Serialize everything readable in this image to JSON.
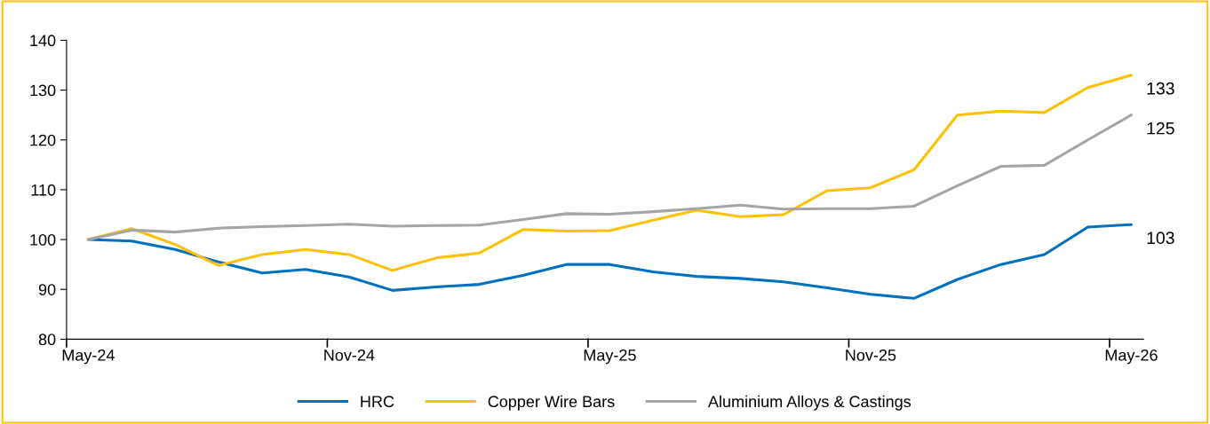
{
  "chart_data": {
    "type": "line",
    "categories": [
      "May-24",
      null,
      null,
      null,
      null,
      null,
      "Nov-24",
      null,
      null,
      null,
      null,
      null,
      "May-25",
      null,
      null,
      null,
      null,
      null,
      "Nov-25",
      null,
      null,
      null,
      null,
      null,
      "May-26"
    ],
    "series": [
      {
        "name": "HRC",
        "color": "#0070c0",
        "values": [
          100,
          99.7,
          98,
          95.5,
          93.3,
          94,
          92.5,
          89.8,
          90.5,
          91,
          92.8,
          95,
          95,
          93.5,
          92.6,
          92.2,
          91.5,
          90.3,
          89,
          88.2,
          92,
          95,
          97,
          102.5,
          103
        ],
        "value_labels": [
          null,
          null,
          null,
          null,
          null,
          null,
          null,
          null,
          null,
          null,
          null,
          null,
          null,
          null,
          null,
          null,
          null,
          null,
          null,
          null,
          null,
          null,
          null,
          null,
          "103"
        ]
      },
      {
        "name": "Copper Wire Bars",
        "color": "#ffc000",
        "values": [
          100,
          102.2,
          99,
          94.8,
          97,
          98,
          97,
          93.8,
          96.3,
          97.3,
          102,
          101.7,
          101.8,
          103.9,
          105.9,
          104.6,
          105,
          109.8,
          110.4,
          114,
          125,
          125.8,
          125.5,
          130.5,
          133
        ],
        "value_labels": [
          null,
          null,
          null,
          null,
          null,
          null,
          null,
          null,
          null,
          null,
          null,
          null,
          null,
          null,
          null,
          null,
          null,
          null,
          null,
          null,
          null,
          null,
          null,
          null,
          "133"
        ]
      },
      {
        "name": "Aluminium Alloys & Castings",
        "color": "#a5a5a5",
        "values": [
          100,
          101.9,
          101.5,
          102.3,
          102.6,
          102.8,
          103.1,
          102.7,
          102.8,
          102.9,
          104,
          105.2,
          105.1,
          105.6,
          106.2,
          106.9,
          106.1,
          106.2,
          106.2,
          106.7,
          110.8,
          114.7,
          114.9,
          120,
          125
        ],
        "value_labels": [
          null,
          null,
          null,
          null,
          null,
          null,
          null,
          null,
          null,
          null,
          null,
          null,
          null,
          null,
          null,
          null,
          null,
          null,
          null,
          null,
          null,
          null,
          null,
          null,
          "125"
        ]
      }
    ],
    "ylim": [
      80,
      140
    ],
    "yticks": [
      80,
      90,
      100,
      110,
      120,
      130,
      140
    ],
    "grid": false,
    "legend": "bottom",
    "marker": "none",
    "line_style": "solid"
  }
}
